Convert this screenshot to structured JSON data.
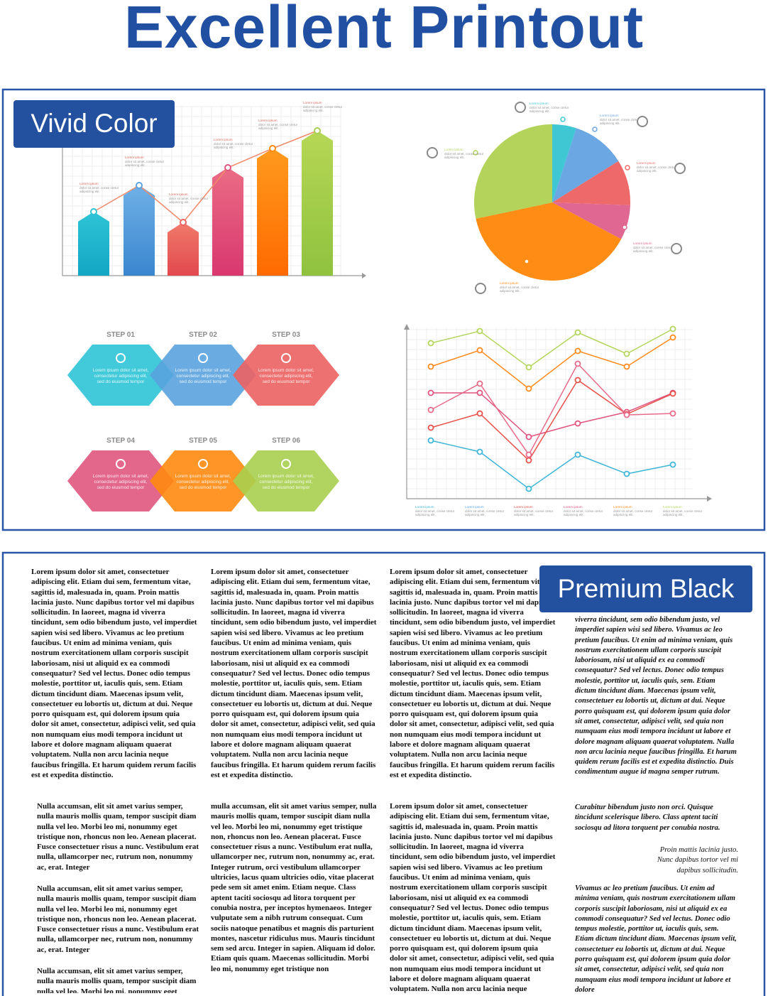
{
  "header": {
    "title": "Excellent Printout"
  },
  "color_panel": {
    "label": "Vivid Color",
    "callout": {
      "title": "Lorem ipsum",
      "text": "dolor sit amet, conse ctetur adipiscing elit."
    },
    "steps": [
      {
        "label": "STEP 01",
        "text": "Lorem ipsum dolor sit amet, consectetur adipiscing elit, sed do eiusmod tempor"
      },
      {
        "label": "STEP 02",
        "text": "Lorem ipsum dolor sit amet, consectetur adipiscing elit, sed do eiusmod tempor"
      },
      {
        "label": "STEP 03",
        "text": "Lorem ipsum dolor sit amet, consectetur adipiscing elit, sed do eiusmod tempor"
      },
      {
        "label": "STEP 04",
        "text": "Lorem ipsum dolor sit amet, consectetur adipiscing elit, sed do eiusmod tempor"
      },
      {
        "label": "STEP 05",
        "text": "Lorem ipsum dolor sit amet, consectetur adipiscing elit, sed do eiusmod tempor"
      },
      {
        "label": "STEP 06",
        "text": "Lorem ipsum dolor sit amet, consectetur adipiscing elit, sed do eiusmod tempor"
      }
    ]
  },
  "text_panel": {
    "label": "Premium Black",
    "paragraphs": [
      "Lorem ipsum dolor sit amet, consectetuer adipiscing elit. Etiam dui sem, fermentum vitae, sagittis id, malesuada in, quam. Proin mattis lacinia justo. Nunc dapibus tortor vel mi dapibus sollicitudin. In laoreet, magna id viverra tincidunt, sem odio bibendum justo, vel imperdiet sapien wisi sed libero. Vivamus ac leo pretium faucibus. Ut enim ad minima veniam, quis nostrum exercitationem ullam corporis suscipit laboriosam, nisi ut aliquid ex ea commodi consequatur? Sed vel lectus. Donec odio tempus molestie, porttitor ut, iaculis quis, sem. Etiam dictum tincidunt diam. Maecenas ipsum velit, consectetuer eu lobortis ut, dictum at dui. Neque porro quisquam est, qui dolorem ipsum quia dolor sit amet, consectetur, adipisci velit, sed quia non numquam eius modi tempora incidunt ut labore et dolore magnam aliquam quaerat voluptatem. Nulla non arcu lacinia neque faucibus fringilla. Et harum quidem rerum facilis est et expedita distinctio.",
      "Nulla accumsan, elit sit amet varius semper, nulla mauris mollis quam, tempor suscipit diam nulla vel leo. Morbi leo mi, nonummy eget tristique non, rhoncus non leo. Aenean placerat. Fusce consectetuer risus a nunc. Vestibulum erat nulla, ullamcorper nec, rutrum non, nonummy ac, erat. Integer",
      "mulla accumsan, elit sit amet varius semper, nulla mauris mollis quam, tempor suscipit diam nulla vel leo. Morbi leo mi, nonummy eget tristique non, rhoncus non leo. Aenean placerat. Fusce consectetuer risus a nunc. Vestibulum erat nulla, ullamcorper nec, rutrum non, nonummy ac, erat. Integer rutrum, orci vestibulum ullamcorper ultricies, lacus quam ultricies odio, vitae placerat pede sem sit amet enim. Etiam neque. Class aptent taciti sociosqu ad litora torquent per conubia nostra, per inceptos hymenaeos. Integer vulputate sem a nibh rutrum consequat. Cum sociis natoque penatibus et magnis dis parturient montes, nascetur ridiculus mus. Mauris tincidunt sem sed arcu. Integer in sapien. Aliquam id dolor. Etiam quis quam. Maecenas sollicitudin. Morbi leo mi, nonummy eget tristique non",
      "viverra tincidunt, sem odio bibendum justo, vel imperdiet sapien wisi sed libero. Vivamus ac leo pretium faucibus. Ut enim ad minima veniam, quis nostrum exercitationem ullam corporis suscipit laboriosam, nisi ut aliquid ex ea commodi consequatur? Sed vel lectus. Donec odio tempus molestie, porttitor ut, iaculis quis, sem. Etiam dictum tincidunt diam. Maecenas ipsum velit, consectetuer eu lobortis ut, dictum at dui. Neque porro quisquam est, qui dolorem ipsum quia dolor sit amet, consectetur, adipisci velit, sed quia non numquam eius modi tempora incidunt ut labore et dolore magnam aliquam quaerat voluptatem. Nulla non arcu lacinia neque faucibus fringilla. Et harum quidem rerum facilis est et expedita distinctio. Duis condimentum augue id magna semper rutrum.",
      "Curabitur bibendum justo non orci. Quisque tincidunt scelerisque libero. Class aptent taciti sociosqu ad litora torquent per conubia nostra.",
      "Proin mattis lacinia justo. Nunc dapibus tortor vel mi dapibus sollicitudin.",
      "Vivamus ac leo pretium faucibus. Ut enim ad minima veniam, quis nostrum exercitationem ullam corporis suscipit laboriosam, nisi ut aliquid ex ea commodi consequatur? Sed vel lectus. Donec odio tempus molestie, porttitor ut, iaculis quis, sem. Etiam dictum tincidunt diam. Maecenas ipsum velit, consectetuer eu lobortis ut, dictum at dui. Neque porro quisquam est, qui dolorem ipsum quia dolor sit amet, consectetur, adipisci velit, sed quia non numquam eius modi tempora incidunt ut labore et dolore"
    ]
  }
}
